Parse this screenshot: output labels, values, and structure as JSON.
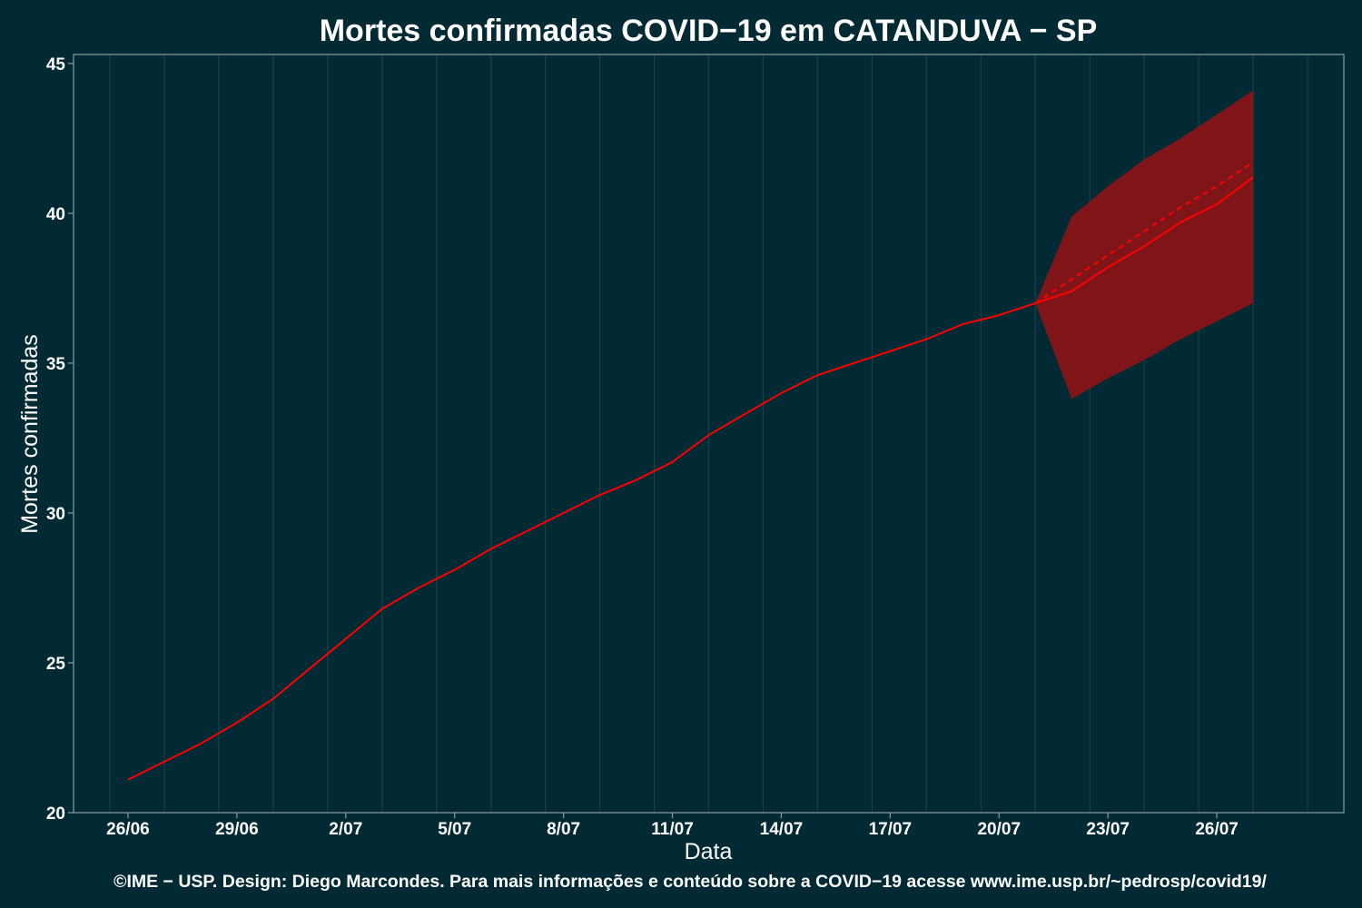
{
  "chart_data": {
    "type": "line",
    "title": "Mortes confirmadas COVID−19 em CATANDUVA − SP",
    "xlabel": "Data",
    "ylabel": "Mortes confirmadas",
    "caption": "©IME − USP. Design: Diego Marcondes. Para mais informações e conteúdo sobre a COVID−19 acesse www.ime.usp.br/~pedrosp/covid19/",
    "x_ticks": [
      "26/06",
      "29/06",
      "2/07",
      "5/07",
      "8/07",
      "11/07",
      "14/07",
      "17/07",
      "20/07",
      "23/07",
      "26/07"
    ],
    "y_ticks": [
      20,
      25,
      30,
      35,
      40,
      45
    ],
    "ylim": [
      20,
      45.3
    ],
    "grid": "vertical",
    "series": [
      {
        "style": "solid",
        "x": [
          "26/06",
          "27/06",
          "28/06",
          "29/06",
          "30/06",
          "1/07",
          "2/07",
          "3/07",
          "4/07",
          "5/07",
          "6/07",
          "7/07",
          "8/07",
          "9/07",
          "10/07",
          "11/07",
          "12/07",
          "13/07",
          "14/07",
          "15/07",
          "16/07",
          "17/07",
          "18/07",
          "19/07",
          "20/07",
          "21/07"
        ],
        "values": [
          21.1,
          21.7,
          22.3,
          23.0,
          23.8,
          24.8,
          25.8,
          26.8,
          27.5,
          28.1,
          28.8,
          29.4,
          30.0,
          30.6,
          31.1,
          31.7,
          32.6,
          33.3,
          34.0,
          34.6,
          35.0,
          35.4,
          35.8,
          36.3,
          36.6,
          37.0
        ]
      },
      {
        "style": "solid",
        "x": [
          "21/07",
          "22/07",
          "23/07",
          "24/07",
          "25/07",
          "26/07",
          "27/07"
        ],
        "values": [
          37.0,
          37.4,
          38.2,
          38.9,
          39.7,
          40.3,
          41.2
        ]
      },
      {
        "style": "dashed",
        "x": [
          "21/07",
          "22/07",
          "23/07",
          "24/07",
          "25/07",
          "26/07",
          "27/07"
        ],
        "values": [
          37.0,
          37.8,
          38.6,
          39.4,
          40.2,
          40.9,
          41.7
        ]
      }
    ],
    "band": {
      "x": [
        "21/07",
        "22/07",
        "23/07",
        "24/07",
        "25/07",
        "26/07",
        "27/07"
      ],
      "upper": [
        37.0,
        39.9,
        40.9,
        41.8,
        42.5,
        43.3,
        44.1
      ],
      "lower": [
        37.0,
        33.8,
        34.5,
        35.1,
        35.8,
        36.4,
        37.0
      ]
    },
    "colors": {
      "background": "#012a35",
      "line": "#ff0000",
      "band": "#7f1519",
      "grid": "#1a3f48",
      "axis": "#8a9ea3"
    }
  }
}
